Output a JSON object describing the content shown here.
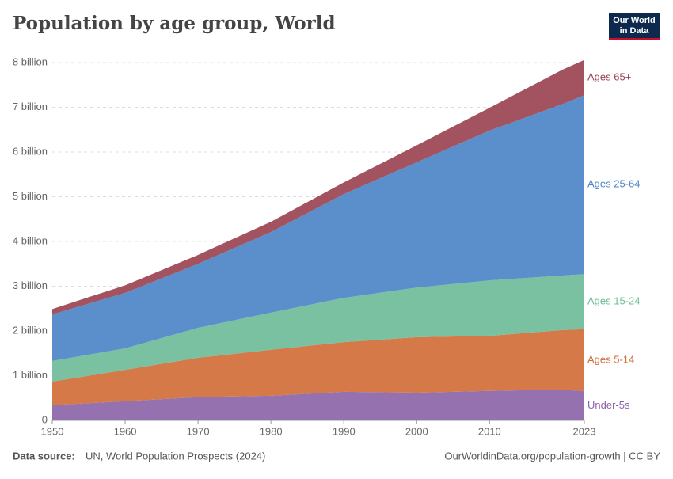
{
  "chart_data": {
    "type": "area",
    "stacked": true,
    "title": "Population by age group, World",
    "logo": [
      "Our World",
      "in Data"
    ],
    "source_label": "Data source:",
    "source": "UN, World Population Prospects (2024)",
    "credit": "OurWorldinData.org/population-growth | CC BY",
    "x": [
      1950,
      1960,
      1970,
      1980,
      1990,
      2000,
      2010,
      2020,
      2023
    ],
    "series": [
      {
        "name": "Under-5s",
        "color": "#8c65a8",
        "values": [
          0.34,
          0.43,
          0.52,
          0.55,
          0.64,
          0.62,
          0.66,
          0.69,
          0.65
        ]
      },
      {
        "name": "Ages 5-14",
        "color": "#d26e3a",
        "values": [
          0.53,
          0.7,
          0.88,
          1.03,
          1.11,
          1.24,
          1.23,
          1.33,
          1.39
        ]
      },
      {
        "name": "Ages 15-24",
        "color": "#6ebc98",
        "values": [
          0.46,
          0.48,
          0.67,
          0.83,
          0.99,
          1.11,
          1.24,
          1.22,
          1.23
        ]
      },
      {
        "name": "Ages 25-64",
        "color": "#4d85c7",
        "values": [
          1.04,
          1.24,
          1.43,
          1.8,
          2.32,
          2.8,
          3.35,
          3.83,
          4.0
        ]
      },
      {
        "name": "Ages 65+",
        "color": "#9a4451",
        "values": [
          0.12,
          0.17,
          0.2,
          0.23,
          0.26,
          0.38,
          0.51,
          0.77,
          0.79
        ]
      }
    ],
    "xlim": [
      1950,
      2023
    ],
    "ylim": [
      0,
      8
    ],
    "xticks": [
      1950,
      1960,
      1970,
      1980,
      1990,
      2000,
      2010,
      2023
    ],
    "yticks": [
      0,
      {
        "value": 1,
        "label": "1 billion"
      },
      {
        "value": 2,
        "label": "2 billion"
      },
      {
        "value": 3,
        "label": "3 billion"
      },
      {
        "value": 4,
        "label": "4 billion"
      },
      {
        "value": 5,
        "label": "5 billion"
      },
      {
        "value": 6,
        "label": "6 billion"
      },
      {
        "value": 7,
        "label": "7 billion"
      },
      {
        "value": 8,
        "label": "8 billion"
      }
    ],
    "grid": true,
    "legend": "right"
  }
}
